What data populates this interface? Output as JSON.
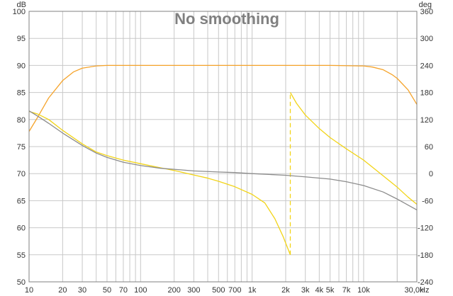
{
  "chart_data": {
    "type": "line",
    "title": "No smoothing",
    "x_scale": "log",
    "xlim": [
      10,
      30000
    ],
    "x_ticks": [
      10,
      20,
      30,
      50,
      70,
      100,
      200,
      300,
      500,
      700,
      1000,
      2000,
      3000,
      4000,
      5000,
      7000,
      10000,
      30000
    ],
    "x_tick_labels": [
      "10",
      "20",
      "30",
      "50",
      "70",
      "100",
      "200",
      "300",
      "500",
      "700",
      "1k",
      "2k",
      "3k",
      "4k",
      "5k",
      "7k",
      "10k",
      "30,0k"
    ],
    "x_unit": "Hz",
    "y_left": {
      "unit": "dB",
      "lim": [
        50,
        100
      ],
      "ticks": [
        50,
        55,
        60,
        65,
        70,
        75,
        80,
        85,
        90,
        95,
        100
      ]
    },
    "y_right": {
      "unit": "deg",
      "lim": [
        -240,
        360
      ],
      "ticks": [
        -240,
        -180,
        -120,
        -60,
        0,
        60,
        120,
        180,
        240,
        300,
        360
      ]
    },
    "grid": true,
    "colors": {
      "spl": "#F5A32A",
      "phase": "#F2D418",
      "gd": "#8C8C8C",
      "grid": "#C8C8C8",
      "frame": "#808080"
    },
    "series": [
      {
        "axis": "left",
        "color": "#F5A32A",
        "x": [
          10,
          12,
          15,
          20,
          25,
          30,
          40,
          50,
          70,
          100,
          200,
          500,
          1000,
          2000,
          5000,
          10000,
          12000,
          15000,
          18000,
          20000,
          25000,
          30000
        ],
        "y": [
          77.8,
          80.5,
          84,
          87.2,
          88.8,
          89.5,
          89.9,
          90,
          90,
          90,
          90,
          90,
          90,
          90,
          90,
          89.9,
          89.7,
          89.2,
          88.3,
          87.6,
          85.5,
          82.8
        ]
      },
      {
        "axis": "right",
        "color": "#F2D418",
        "x": [
          10,
          12,
          15,
          20,
          30,
          40,
          50,
          70,
          100,
          150,
          200,
          300,
          400,
          500,
          700,
          1000,
          1300,
          1600,
          1900,
          2200,
          2200,
          2500,
          3000,
          4000,
          5000,
          7000,
          10000,
          15000,
          20000,
          25000,
          30000
        ],
        "y": [
          138,
          132,
          120,
          96,
          66,
          48,
          40,
          30,
          22,
          13,
          7,
          -3,
          -10,
          -17,
          -29,
          -46,
          -65,
          -100,
          -140,
          -180,
          180,
          156,
          130,
          100,
          80,
          55,
          30,
          -5,
          -30,
          -52,
          -68
        ]
      },
      {
        "axis": "left",
        "color": "#8C8C8C",
        "x": [
          10,
          12,
          15,
          20,
          30,
          40,
          50,
          70,
          100,
          150,
          200,
          300,
          500,
          700,
          1000,
          2000,
          3000,
          5000,
          7000,
          10000,
          15000,
          20000,
          25000,
          30000
        ],
        "y": [
          81.6,
          80.6,
          79.3,
          77.5,
          75.2,
          73.8,
          73,
          72.1,
          71.5,
          71,
          70.8,
          70.5,
          70.3,
          70.2,
          70,
          69.7,
          69.4,
          69,
          68.5,
          67.8,
          66.6,
          65.3,
          64.2,
          63.3
        ]
      }
    ]
  }
}
